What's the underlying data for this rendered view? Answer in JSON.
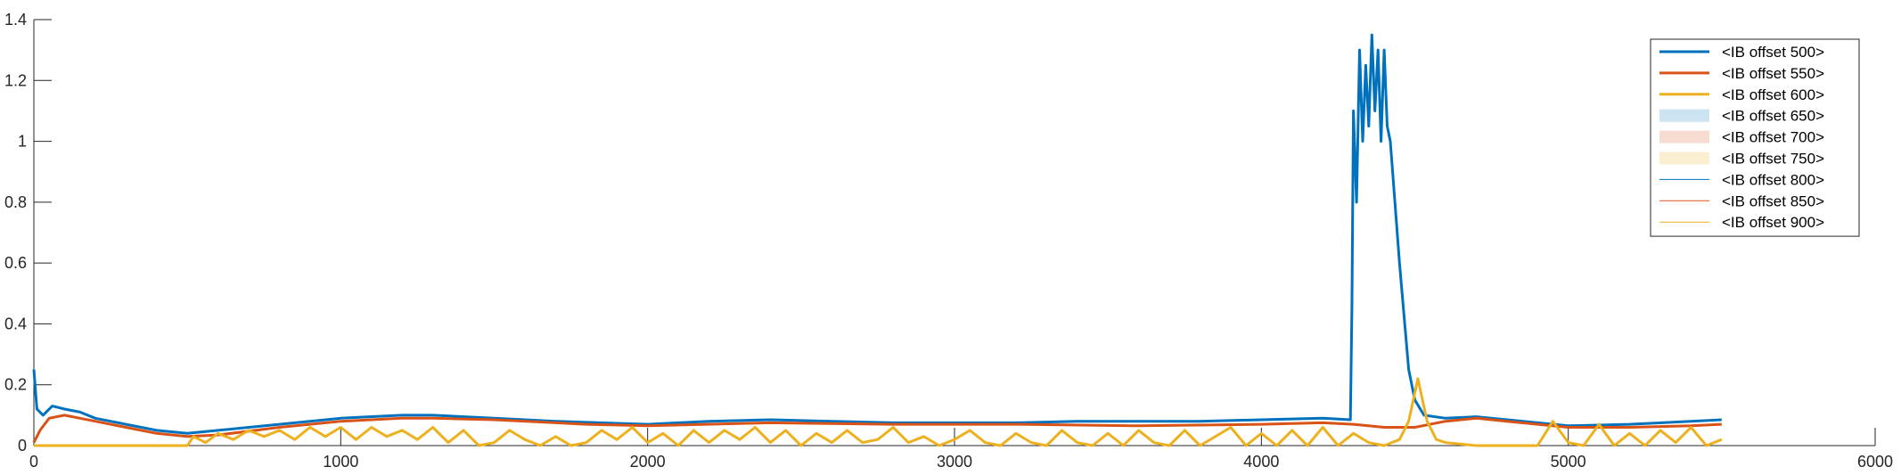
{
  "chart_data": {
    "type": "line",
    "title": "",
    "xlabel": "",
    "ylabel": "",
    "xlim": [
      0,
      6000
    ],
    "ylim": [
      0,
      1.4
    ],
    "xticks": [
      0,
      1000,
      2000,
      3000,
      4000,
      5000,
      6000
    ],
    "yticks": [
      0,
      0.2,
      0.4,
      0.6,
      0.8,
      1,
      1.2,
      1.4
    ],
    "xtick_labels": [
      "0",
      "1000",
      "2000",
      "3000",
      "4000",
      "5000",
      "6000"
    ],
    "ytick_labels": [
      "0",
      "0.2",
      "0.4",
      "0.6",
      "0.8",
      "1",
      "1.2",
      "1.4"
    ],
    "grid": false,
    "legend_position": "top-right",
    "series": [
      {
        "name": "<IB offset 500>",
        "style": "thick-line",
        "color": "#0072BD",
        "x": [
          0,
          10,
          30,
          60,
          100,
          150,
          200,
          300,
          400,
          500,
          600,
          800,
          1000,
          1200,
          1300,
          1500,
          1700,
          2000,
          2200,
          2400,
          2600,
          2800,
          3000,
          3200,
          3400,
          3600,
          3800,
          4000,
          4200,
          4290,
          4295,
          4300,
          4310,
          4320,
          4330,
          4340,
          4350,
          4360,
          4370,
          4380,
          4390,
          4400,
          4410,
          4420,
          4450,
          4480,
          4500,
          4530,
          4600,
          4700,
          4800,
          5000,
          5200,
          5400,
          5500
        ],
        "y": [
          0.25,
          0.12,
          0.1,
          0.13,
          0.12,
          0.11,
          0.09,
          0.07,
          0.05,
          0.04,
          0.05,
          0.07,
          0.09,
          0.1,
          0.1,
          0.09,
          0.08,
          0.07,
          0.08,
          0.085,
          0.08,
          0.075,
          0.075,
          0.075,
          0.08,
          0.08,
          0.08,
          0.085,
          0.09,
          0.085,
          0.45,
          1.1,
          0.8,
          1.3,
          1.0,
          1.25,
          1.05,
          1.35,
          1.1,
          1.3,
          1.0,
          1.3,
          1.05,
          1.0,
          0.6,
          0.25,
          0.15,
          0.1,
          0.09,
          0.095,
          0.085,
          0.065,
          0.07,
          0.08,
          0.085
        ]
      },
      {
        "name": "<IB offset 550>",
        "style": "thick-line",
        "color": "#D95319",
        "x": [
          0,
          20,
          50,
          100,
          150,
          200,
          300,
          400,
          500,
          600,
          800,
          1000,
          1200,
          1300,
          1500,
          1800,
          2000,
          2400,
          2800,
          3200,
          3600,
          4000,
          4200,
          4300,
          4400,
          4500,
          4600,
          4700,
          4800,
          5000,
          5200,
          5400,
          5500
        ],
        "y": [
          0.01,
          0.05,
          0.09,
          0.1,
          0.09,
          0.08,
          0.06,
          0.04,
          0.03,
          0.035,
          0.06,
          0.08,
          0.09,
          0.09,
          0.085,
          0.07,
          0.065,
          0.075,
          0.07,
          0.07,
          0.065,
          0.07,
          0.075,
          0.07,
          0.06,
          0.06,
          0.08,
          0.09,
          0.08,
          0.06,
          0.06,
          0.065,
          0.07
        ]
      },
      {
        "name": "<IB offset 600>",
        "style": "thick-line",
        "color": "#EDB120",
        "x": [
          0,
          500,
          520,
          560,
          600,
          650,
          700,
          750,
          800,
          850,
          900,
          950,
          1000,
          1050,
          1100,
          1150,
          1200,
          1250,
          1300,
          1350,
          1400,
          1450,
          1500,
          1550,
          1600,
          1650,
          1700,
          1750,
          1800,
          1850,
          1900,
          1950,
          2000,
          2050,
          2100,
          2150,
          2200,
          2250,
          2300,
          2350,
          2400,
          2450,
          2500,
          2550,
          2600,
          2650,
          2700,
          2750,
          2800,
          2850,
          2900,
          2950,
          3000,
          3050,
          3100,
          3150,
          3200,
          3250,
          3300,
          3350,
          3400,
          3450,
          3500,
          3550,
          3600,
          3650,
          3700,
          3750,
          3800,
          3850,
          3900,
          3950,
          4000,
          4050,
          4100,
          4150,
          4200,
          4250,
          4300,
          4350,
          4400,
          4450,
          4480,
          4510,
          4540,
          4570,
          4600,
          4700,
          4800,
          4900,
          4950,
          5000,
          5050,
          5100,
          5150,
          5200,
          5250,
          5300,
          5350,
          5400,
          5450,
          5500
        ],
        "y": [
          0,
          0,
          0.03,
          0.01,
          0.04,
          0.02,
          0.05,
          0.03,
          0.05,
          0.02,
          0.06,
          0.03,
          0.06,
          0.02,
          0.06,
          0.03,
          0.05,
          0.02,
          0.06,
          0.01,
          0.05,
          0.0,
          0.01,
          0.05,
          0.02,
          0.0,
          0.03,
          0.0,
          0.01,
          0.05,
          0.02,
          0.06,
          0.01,
          0.04,
          0.0,
          0.05,
          0.01,
          0.05,
          0.02,
          0.06,
          0.01,
          0.05,
          0.0,
          0.04,
          0.01,
          0.05,
          0.01,
          0.02,
          0.06,
          0.01,
          0.03,
          0.0,
          0.02,
          0.05,
          0.01,
          0.0,
          0.04,
          0.01,
          0.0,
          0.05,
          0.01,
          0.0,
          0.04,
          0.0,
          0.05,
          0.01,
          0.0,
          0.05,
          0.0,
          0.03,
          0.06,
          0.0,
          0.04,
          0.0,
          0.05,
          0.0,
          0.06,
          0.0,
          0.04,
          0.01,
          0.0,
          0.02,
          0.08,
          0.22,
          0.08,
          0.02,
          0.01,
          0.0,
          0.0,
          0.0,
          0.08,
          0.01,
          0.0,
          0.07,
          0.0,
          0.04,
          0.0,
          0.05,
          0.01,
          0.06,
          0.0,
          0.02
        ]
      },
      {
        "name": "<IB offset 650>",
        "style": "band",
        "color": "#0072BD"
      },
      {
        "name": "<IB offset 700>",
        "style": "band",
        "color": "#D95319"
      },
      {
        "name": "<IB offset 750>",
        "style": "band",
        "color": "#EDB120"
      },
      {
        "name": "<IB offset 800>",
        "style": "thin-line",
        "color": "#0072BD"
      },
      {
        "name": "<IB offset 850>",
        "style": "thin-line",
        "color": "#D95319"
      },
      {
        "name": "<IB offset 900>",
        "style": "thin-line",
        "color": "#EDB120"
      }
    ]
  }
}
